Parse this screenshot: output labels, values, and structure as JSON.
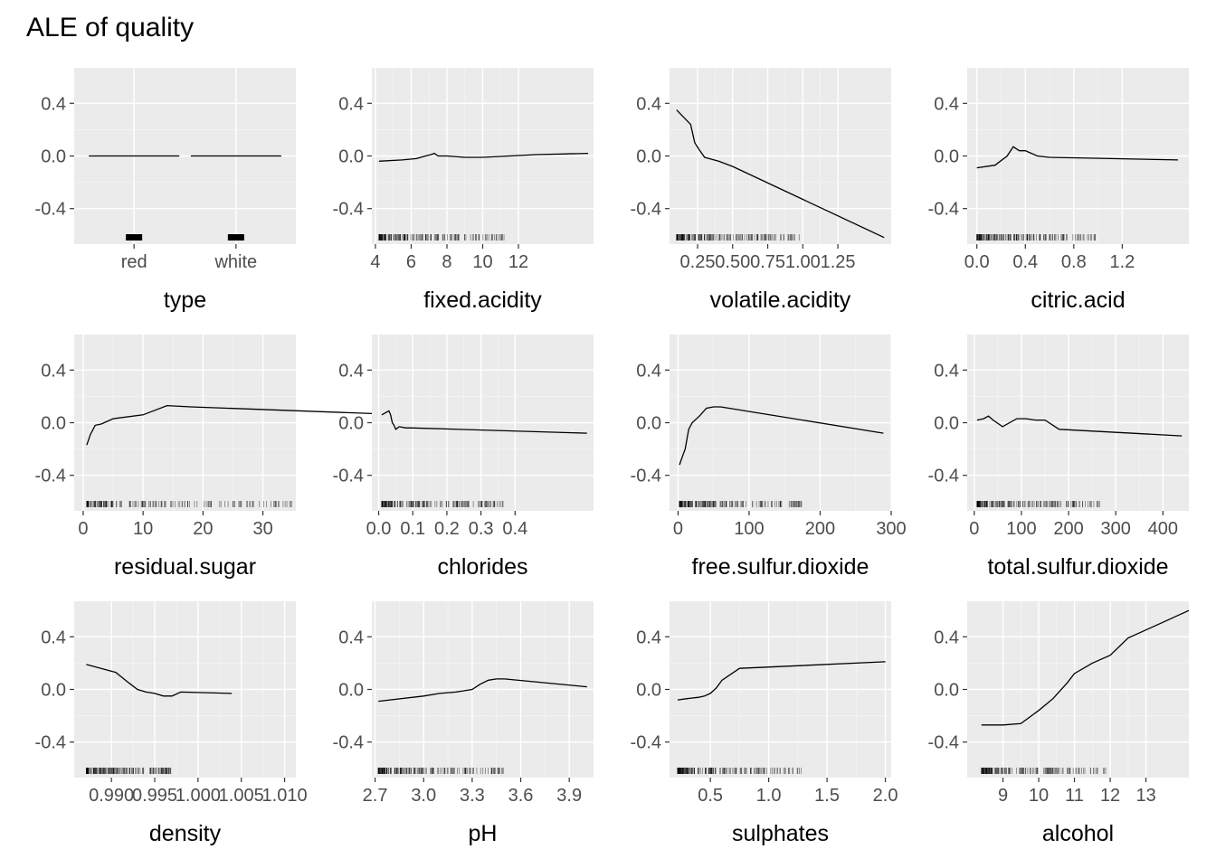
{
  "title": "ALE of quality",
  "chart_data": [
    {
      "type": "bar",
      "xlabel": "type",
      "categories": [
        "red",
        "white"
      ],
      "values": [
        0.0,
        0.0
      ],
      "ylim": [
        -0.67,
        0.67
      ],
      "yticks": [
        -0.4,
        0.0,
        0.4
      ],
      "ytick_labels": [
        "-0.4",
        "0.0",
        "0.4"
      ],
      "grid": true
    },
    {
      "type": "line",
      "xlabel": "fixed.acidity",
      "xlim": [
        3.8,
        16.2
      ],
      "ylim": [
        -0.67,
        0.67
      ],
      "xticks": [
        4,
        6,
        8,
        10,
        12
      ],
      "xtick_labels": [
        "4",
        "6",
        "8",
        "10",
        "12"
      ],
      "yticks": [
        -0.4,
        0.0,
        0.4
      ],
      "ytick_labels": [
        "-0.4",
        "0.0",
        "0.4"
      ],
      "grid": true,
      "x": [
        4.2,
        5.5,
        6.3,
        6.8,
        7.1,
        7.3,
        7.5,
        8.0,
        9.0,
        10.0,
        11.5,
        13.0,
        15.9
      ],
      "y": [
        -0.04,
        -0.03,
        -0.02,
        0.0,
        0.01,
        0.02,
        0.0,
        0.0,
        -0.01,
        -0.01,
        0.0,
        0.01,
        0.02
      ]
    },
    {
      "type": "line",
      "xlabel": "volatile.acidity",
      "xlim": [
        0.05,
        1.63
      ],
      "ylim": [
        -0.67,
        0.67
      ],
      "xticks": [
        0.25,
        0.5,
        0.75,
        1.0,
        1.25
      ],
      "xtick_labels": [
        "0.25",
        "0.50",
        "0.75",
        "1.00",
        "1.25"
      ],
      "yticks": [
        -0.4,
        0.0,
        0.4
      ],
      "ytick_labels": [
        "-0.4",
        "0.0",
        "0.4"
      ],
      "grid": true,
      "x": [
        0.1,
        0.2,
        0.23,
        0.26,
        0.3,
        0.4,
        0.5,
        1.58
      ],
      "y": [
        0.35,
        0.24,
        0.1,
        0.05,
        -0.01,
        -0.04,
        -0.08,
        -0.62
      ]
    },
    {
      "type": "line",
      "xlabel": "citric.acid",
      "xlim": [
        -0.08,
        1.75
      ],
      "ylim": [
        -0.67,
        0.67
      ],
      "xticks": [
        0.0,
        0.4,
        0.8,
        1.2
      ],
      "xtick_labels": [
        "0.0",
        "0.4",
        "0.8",
        "1.2"
      ],
      "yticks": [
        -0.4,
        0.0,
        0.4
      ],
      "ytick_labels": [
        "-0.4",
        "0.0",
        "0.4"
      ],
      "grid": true,
      "x": [
        0.0,
        0.15,
        0.25,
        0.3,
        0.35,
        0.4,
        0.45,
        0.5,
        0.6,
        1.66
      ],
      "y": [
        -0.09,
        -0.07,
        0.0,
        0.07,
        0.04,
        0.04,
        0.02,
        0.0,
        -0.01,
        -0.03
      ]
    },
    {
      "type": "line",
      "xlabel": "residual.sugar",
      "xlim": [
        -1.5,
        35.5
      ],
      "ylim": [
        -0.67,
        0.67
      ],
      "xticks": [
        0,
        10,
        20,
        30
      ],
      "xtick_labels": [
        "0",
        "10",
        "20",
        "30"
      ],
      "yticks": [
        -0.4,
        0.0,
        0.4
      ],
      "ytick_labels": [
        "-0.4",
        "0.0",
        "0.4"
      ],
      "grid": true,
      "x": [
        0.6,
        1.2,
        2.0,
        3.0,
        5.0,
        10.0,
        14.0,
        18.0,
        65.8
      ],
      "y": [
        -0.17,
        -0.09,
        -0.02,
        -0.01,
        0.03,
        0.06,
        0.13,
        0.12,
        0.04
      ]
    },
    {
      "type": "line",
      "xlabel": "chlorides",
      "xlim": [
        -0.02,
        0.63
      ],
      "ylim": [
        -0.67,
        0.67
      ],
      "xticks": [
        0.0,
        0.1,
        0.2,
        0.3,
        0.4
      ],
      "xtick_labels": [
        "0.0",
        "0.1",
        "0.2",
        "0.3",
        "0.4"
      ],
      "yticks": [
        -0.4,
        0.0,
        0.4
      ],
      "ytick_labels": [
        "-0.4",
        "0.0",
        "0.4"
      ],
      "grid": true,
      "x": [
        0.009,
        0.03,
        0.035,
        0.04,
        0.045,
        0.05,
        0.06,
        0.08,
        0.1,
        0.611
      ],
      "y": [
        0.06,
        0.09,
        0.06,
        0.0,
        -0.02,
        -0.05,
        -0.03,
        -0.04,
        -0.04,
        -0.08
      ]
    },
    {
      "type": "line",
      "xlabel": "free.sulfur.dioxide",
      "xlim": [
        -12,
        300
      ],
      "ylim": [
        -0.67,
        0.67
      ],
      "xticks": [
        0,
        100,
        200,
        300
      ],
      "xtick_labels": [
        "0",
        "100",
        "200",
        "300"
      ],
      "yticks": [
        -0.4,
        0.0,
        0.4
      ],
      "ytick_labels": [
        "-0.4",
        "0.0",
        "0.4"
      ],
      "grid": true,
      "x": [
        2,
        6,
        10,
        15,
        20,
        30,
        40,
        50,
        60,
        289
      ],
      "y": [
        -0.32,
        -0.26,
        -0.2,
        -0.05,
        0.0,
        0.05,
        0.11,
        0.12,
        0.12,
        -0.08
      ]
    },
    {
      "type": "line",
      "xlabel": "total.sulfur.dioxide",
      "xlim": [
        -15,
        455
      ],
      "ylim": [
        -0.67,
        0.67
      ],
      "xticks": [
        0,
        100,
        200,
        300,
        400
      ],
      "xtick_labels": [
        "0",
        "100",
        "200",
        "300",
        "400"
      ],
      "yticks": [
        -0.4,
        0.0,
        0.4
      ],
      "ytick_labels": [
        "-0.4",
        "0.0",
        "0.4"
      ],
      "grid": true,
      "x": [
        6,
        20,
        30,
        40,
        60,
        90,
        110,
        130,
        150,
        180,
        440
      ],
      "y": [
        0.02,
        0.03,
        0.05,
        0.02,
        -0.03,
        0.03,
        0.03,
        0.02,
        0.02,
        -0.05,
        -0.1
      ]
    },
    {
      "type": "line",
      "xlabel": "density",
      "xlim": [
        0.9857,
        1.0113
      ],
      "ylim": [
        -0.67,
        0.67
      ],
      "xticks": [
        0.99,
        0.995,
        1.0,
        1.005,
        1.01
      ],
      "xtick_labels": [
        "0.990",
        "0.995",
        "1.000",
        "1.005",
        "1.010"
      ],
      "yticks": [
        -0.4,
        0.0,
        0.4
      ],
      "ytick_labels": [
        "-0.4",
        "0.0",
        "0.4"
      ],
      "grid": true,
      "x": [
        0.9871,
        0.9905,
        0.992,
        0.993,
        0.994,
        0.995,
        0.996,
        0.997,
        0.998,
        1.0039
      ],
      "y": [
        0.19,
        0.13,
        0.05,
        0.0,
        -0.02,
        -0.03,
        -0.05,
        -0.05,
        -0.02,
        -0.03
      ]
    },
    {
      "type": "line",
      "xlabel": "pH",
      "xlim": [
        2.68,
        4.05
      ],
      "ylim": [
        -0.67,
        0.67
      ],
      "xticks": [
        2.7,
        3.0,
        3.3,
        3.6,
        3.9
      ],
      "xtick_labels": [
        "2.7",
        "3.0",
        "3.3",
        "3.6",
        "3.9"
      ],
      "yticks": [
        -0.4,
        0.0,
        0.4
      ],
      "ytick_labels": [
        "-0.4",
        "0.0",
        "0.4"
      ],
      "grid": true,
      "x": [
        2.72,
        3.0,
        3.1,
        3.2,
        3.3,
        3.35,
        3.4,
        3.45,
        3.5,
        4.01
      ],
      "y": [
        -0.09,
        -0.05,
        -0.03,
        -0.02,
        0.0,
        0.04,
        0.07,
        0.08,
        0.08,
        0.02
      ]
    },
    {
      "type": "line",
      "xlabel": "sulphates",
      "xlim": [
        0.15,
        2.05
      ],
      "ylim": [
        -0.67,
        0.67
      ],
      "xticks": [
        0.5,
        1.0,
        1.5,
        2.0
      ],
      "xtick_labels": [
        "0.5",
        "1.0",
        "1.5",
        "2.0"
      ],
      "yticks": [
        -0.4,
        0.0,
        0.4
      ],
      "ytick_labels": [
        "-0.4",
        "0.0",
        "0.4"
      ],
      "grid": true,
      "x": [
        0.22,
        0.3,
        0.4,
        0.45,
        0.5,
        0.55,
        0.6,
        0.7,
        0.75,
        2.0
      ],
      "y": [
        -0.08,
        -0.07,
        -0.06,
        -0.05,
        -0.03,
        0.01,
        0.07,
        0.13,
        0.16,
        0.21
      ]
    },
    {
      "type": "line",
      "xlabel": "alcohol",
      "xlim": [
        8.0,
        14.2
      ],
      "ylim": [
        -0.67,
        0.67
      ],
      "xticks": [
        9,
        10,
        11,
        12,
        13
      ],
      "xtick_labels": [
        "9",
        "10",
        "11",
        "12",
        "13"
      ],
      "yticks": [
        -0.4,
        0.0,
        0.4
      ],
      "ytick_labels": [
        "-0.4",
        "0.0",
        "0.4"
      ],
      "grid": true,
      "x": [
        8.4,
        8.6,
        9.0,
        9.5,
        9.8,
        10.0,
        10.4,
        10.8,
        11.0,
        11.5,
        12.0,
        12.5,
        14.2
      ],
      "y": [
        -0.27,
        -0.27,
        -0.27,
        -0.26,
        -0.2,
        -0.16,
        -0.07,
        0.05,
        0.12,
        0.2,
        0.26,
        0.39,
        0.6
      ]
    }
  ]
}
